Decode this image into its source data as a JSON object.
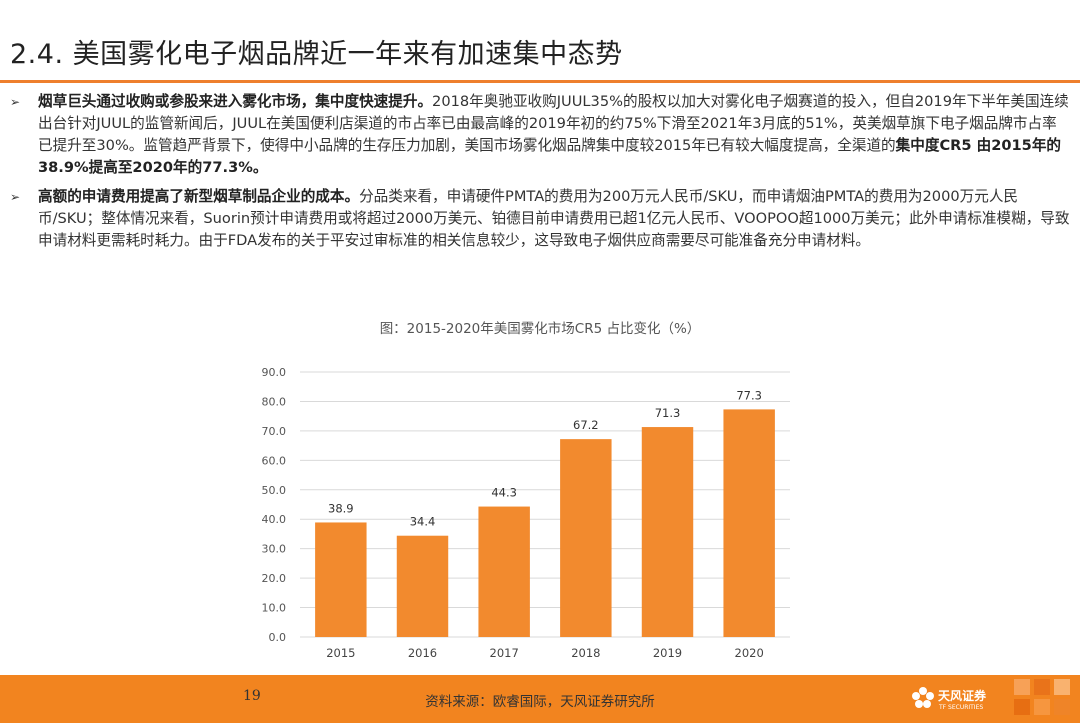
{
  "header": {
    "title": "2.4. 美国雾化电子烟品牌近一年来有加速集中态势"
  },
  "bullets": [
    {
      "arrow": "➢",
      "bold": "烟草巨头通过收购或参股来进入雾化市场，集中度快速提升。",
      "text": "2018年奥驰亚收购JUUL35%的股权以加大对雾化电子烟赛道的投入，但自2019年下半年美国连续出台针对JUUL的监管新闻后，JUUL在美国便利店渠道的市占率已由最高峰的2019年初的约75%下滑至2021年3月底的51%，英美烟草旗下电子烟品牌市占率已提升至30%。监管趋严背景下，使得中小品牌的生存压力加剧，美国市场雾化烟品牌集中度较2015年已有较大幅度提高，全渠道的",
      "bold2": "集中度CR5 由2015年的38.9%提高至2020年的77.3%。"
    },
    {
      "arrow": "➢",
      "bold": "高额的申请费用提高了新型烟草制品企业的成本。",
      "text": "分品类来看，申请硬件PMTA的费用为200万元人民币/SKU，而申请烟油PMTA的费用为2000万元人民币/SKU；整体情况来看，Suorin预计申请费用或将超过2000万美元、铂德目前申请费用已超1亿元人民币、VOOPOO超1000万美元；此外申请标准模糊，导致申请材料更需耗时耗力。由于FDA发布的关于平安过审标准的相关信息较少，这导致电子烟供应商需要尽可能准备充分申请材料。"
    }
  ],
  "chart_caption": "图：2015-2020年美国雾化市场CR5 占比变化（%）",
  "chart_data": {
    "type": "bar",
    "title": "图：2015-2020年美国雾化市场CR5 占比变化（%）",
    "categories": [
      "2015",
      "2016",
      "2017",
      "2018",
      "2019",
      "2020"
    ],
    "values": [
      38.9,
      34.4,
      44.3,
      67.2,
      71.3,
      77.3
    ],
    "value_labels": [
      "38.9",
      "34.4",
      "44.3",
      "67.2",
      "71.3",
      "77.3"
    ],
    "ylim": [
      0,
      90
    ],
    "yticks": [
      "0.0",
      "10.0",
      "20.0",
      "30.0",
      "40.0",
      "50.0",
      "60.0",
      "70.0",
      "80.0",
      "90.0"
    ],
    "grid": true,
    "bar_color": "#f28a2e",
    "grid_color": "#d9d9d9"
  },
  "footer": {
    "page_number": "19",
    "source": "资料来源：欧睿国际，天风证券研究所",
    "logo_name": "天风证券",
    "logo_sub": "TF SECURITIES",
    "bar_color": "#f2841f"
  }
}
